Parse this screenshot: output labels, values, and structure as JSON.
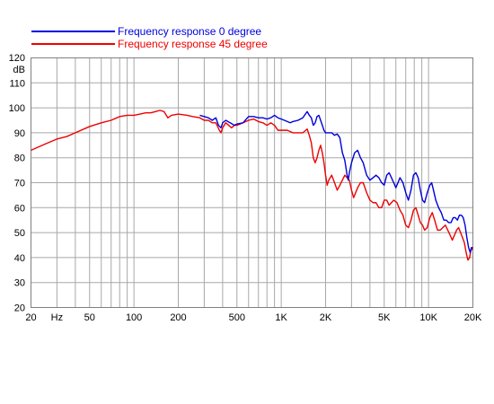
{
  "chart_data": {
    "type": "line",
    "title": "",
    "xlabel": "",
    "ylabel": "dB",
    "x_scale": "log",
    "xlim": [
      20,
      20000
    ],
    "ylim": [
      20,
      120
    ],
    "grid": true,
    "legend_position": "top",
    "x_ticks": [
      {
        "value": 20,
        "label": "20"
      },
      {
        "value": 30,
        "label": "Hz"
      },
      {
        "value": 50,
        "label": "50"
      },
      {
        "value": 100,
        "label": "100"
      },
      {
        "value": 200,
        "label": "200"
      },
      {
        "value": 500,
        "label": "500"
      },
      {
        "value": 1000,
        "label": "1K"
      },
      {
        "value": 2000,
        "label": "2K"
      },
      {
        "value": 5000,
        "label": "5K"
      },
      {
        "value": 10000,
        "label": "10K"
      },
      {
        "value": 20000,
        "label": "20K"
      }
    ],
    "y_ticks": [
      {
        "value": 30,
        "label": "30"
      },
      {
        "value": 40,
        "label": "40"
      },
      {
        "value": 50,
        "label": "50"
      },
      {
        "value": 60,
        "label": "60"
      },
      {
        "value": 70,
        "label": "70"
      },
      {
        "value": 80,
        "label": "80"
      },
      {
        "value": 90,
        "label": "90"
      },
      {
        "value": 100,
        "label": "100"
      },
      {
        "value": 110,
        "label": "110"
      }
    ],
    "y_top_labels": [
      "120",
      "dB"
    ],
    "series": [
      {
        "name": "Frequency response 0 degree",
        "color": "#0000dd",
        "points": [
          [
            280,
            97
          ],
          [
            300,
            96.5
          ],
          [
            320,
            96
          ],
          [
            340,
            95
          ],
          [
            360,
            96
          ],
          [
            375,
            93
          ],
          [
            390,
            92
          ],
          [
            400,
            94
          ],
          [
            420,
            95
          ],
          [
            450,
            94
          ],
          [
            480,
            93
          ],
          [
            500,
            93.5
          ],
          [
            550,
            94
          ],
          [
            600,
            96.5
          ],
          [
            650,
            96.5
          ],
          [
            700,
            96
          ],
          [
            750,
            96
          ],
          [
            800,
            95.5
          ],
          [
            850,
            96
          ],
          [
            900,
            97
          ],
          [
            950,
            96
          ],
          [
            1000,
            95.5
          ],
          [
            1050,
            95
          ],
          [
            1100,
            94.5
          ],
          [
            1150,
            94
          ],
          [
            1200,
            94.5
          ],
          [
            1300,
            95
          ],
          [
            1400,
            96
          ],
          [
            1500,
            98.5
          ],
          [
            1550,
            97
          ],
          [
            1600,
            96
          ],
          [
            1650,
            93
          ],
          [
            1700,
            94
          ],
          [
            1750,
            96.5
          ],
          [
            1800,
            97
          ],
          [
            1850,
            95
          ],
          [
            1900,
            93
          ],
          [
            1950,
            91
          ],
          [
            2000,
            90
          ],
          [
            2100,
            90
          ],
          [
            2200,
            90
          ],
          [
            2300,
            89
          ],
          [
            2400,
            89.5
          ],
          [
            2500,
            88
          ],
          [
            2600,
            82
          ],
          [
            2700,
            79
          ],
          [
            2800,
            73
          ],
          [
            2850,
            71
          ],
          [
            2900,
            74
          ],
          [
            3000,
            78
          ],
          [
            3150,
            82
          ],
          [
            3300,
            83
          ],
          [
            3450,
            80
          ],
          [
            3600,
            78
          ],
          [
            3800,
            73
          ],
          [
            4000,
            71
          ],
          [
            4200,
            72
          ],
          [
            4400,
            73
          ],
          [
            4600,
            72
          ],
          [
            4800,
            70
          ],
          [
            5000,
            69
          ],
          [
            5200,
            73
          ],
          [
            5400,
            74
          ],
          [
            5600,
            72
          ],
          [
            5800,
            70
          ],
          [
            6000,
            68
          ],
          [
            6200,
            70
          ],
          [
            6400,
            72
          ],
          [
            6700,
            70
          ],
          [
            7000,
            66
          ],
          [
            7300,
            63
          ],
          [
            7600,
            67
          ],
          [
            7900,
            73
          ],
          [
            8200,
            74
          ],
          [
            8500,
            72
          ],
          [
            8800,
            67
          ],
          [
            9100,
            63
          ],
          [
            9400,
            62
          ],
          [
            9800,
            66
          ],
          [
            10200,
            69
          ],
          [
            10500,
            70
          ],
          [
            10800,
            67
          ],
          [
            11200,
            63
          ],
          [
            11700,
            60
          ],
          [
            12200,
            58
          ],
          [
            12700,
            55
          ],
          [
            13200,
            55
          ],
          [
            13700,
            54
          ],
          [
            14200,
            54
          ],
          [
            14700,
            56
          ],
          [
            15200,
            56
          ],
          [
            15700,
            55
          ],
          [
            16200,
            57
          ],
          [
            16700,
            57
          ],
          [
            17200,
            56
          ],
          [
            17700,
            53
          ],
          [
            18200,
            48
          ],
          [
            18700,
            44
          ],
          [
            19200,
            42
          ],
          [
            19600,
            44
          ],
          [
            20000,
            44
          ]
        ]
      },
      {
        "name": "Frequency response 45 degree",
        "color": "#ee0000",
        "points": [
          [
            20,
            83
          ],
          [
            25,
            85.5
          ],
          [
            30,
            87.5
          ],
          [
            35,
            88.5
          ],
          [
            40,
            90
          ],
          [
            50,
            92.5
          ],
          [
            60,
            94
          ],
          [
            70,
            95
          ],
          [
            80,
            96.5
          ],
          [
            90,
            97
          ],
          [
            100,
            97
          ],
          [
            110,
            97.5
          ],
          [
            120,
            98
          ],
          [
            130,
            98
          ],
          [
            140,
            98.5
          ],
          [
            150,
            99
          ],
          [
            160,
            98.5
          ],
          [
            170,
            96
          ],
          [
            180,
            97
          ],
          [
            200,
            97.5
          ],
          [
            230,
            97
          ],
          [
            250,
            96.5
          ],
          [
            280,
            96
          ],
          [
            300,
            95
          ],
          [
            320,
            95
          ],
          [
            340,
            94
          ],
          [
            360,
            94
          ],
          [
            380,
            91
          ],
          [
            390,
            90
          ],
          [
            400,
            92
          ],
          [
            420,
            94
          ],
          [
            440,
            93
          ],
          [
            460,
            92
          ],
          [
            480,
            93
          ],
          [
            500,
            93
          ],
          [
            550,
            94
          ],
          [
            600,
            95
          ],
          [
            650,
            95.5
          ],
          [
            700,
            94.5
          ],
          [
            750,
            94
          ],
          [
            800,
            93
          ],
          [
            850,
            94
          ],
          [
            900,
            93
          ],
          [
            950,
            91
          ],
          [
            1000,
            91
          ],
          [
            1100,
            91
          ],
          [
            1200,
            90
          ],
          [
            1300,
            90
          ],
          [
            1400,
            90
          ],
          [
            1500,
            91.5
          ],
          [
            1550,
            89
          ],
          [
            1600,
            86
          ],
          [
            1650,
            80
          ],
          [
            1700,
            78
          ],
          [
            1750,
            80
          ],
          [
            1800,
            83
          ],
          [
            1850,
            85
          ],
          [
            1900,
            82
          ],
          [
            1950,
            78
          ],
          [
            2000,
            73
          ],
          [
            2050,
            69
          ],
          [
            2100,
            71
          ],
          [
            2200,
            73
          ],
          [
            2300,
            70
          ],
          [
            2400,
            67
          ],
          [
            2500,
            69
          ],
          [
            2600,
            71
          ],
          [
            2700,
            73
          ],
          [
            2800,
            72
          ],
          [
            2900,
            71
          ],
          [
            3000,
            67
          ],
          [
            3100,
            64
          ],
          [
            3200,
            66
          ],
          [
            3300,
            68
          ],
          [
            3450,
            70
          ],
          [
            3600,
            70
          ],
          [
            3800,
            66
          ],
          [
            4000,
            63
          ],
          [
            4200,
            62
          ],
          [
            4400,
            62
          ],
          [
            4600,
            60
          ],
          [
            4800,
            60
          ],
          [
            5000,
            63
          ],
          [
            5200,
            63
          ],
          [
            5400,
            61
          ],
          [
            5600,
            62
          ],
          [
            5800,
            63
          ],
          [
            6100,
            62
          ],
          [
            6400,
            59
          ],
          [
            6700,
            57
          ],
          [
            7000,
            53
          ],
          [
            7300,
            52
          ],
          [
            7600,
            55
          ],
          [
            7900,
            59
          ],
          [
            8200,
            60
          ],
          [
            8500,
            57
          ],
          [
            8800,
            54
          ],
          [
            9100,
            53
          ],
          [
            9400,
            51
          ],
          [
            9800,
            52
          ],
          [
            10200,
            56
          ],
          [
            10600,
            58
          ],
          [
            11000,
            55
          ],
          [
            11500,
            51
          ],
          [
            12000,
            51
          ],
          [
            12500,
            52
          ],
          [
            13000,
            53
          ],
          [
            13500,
            51
          ],
          [
            14000,
            49
          ],
          [
            14500,
            47
          ],
          [
            15000,
            49
          ],
          [
            15500,
            51
          ],
          [
            16000,
            52
          ],
          [
            16500,
            50
          ],
          [
            17000,
            48
          ],
          [
            17500,
            46
          ],
          [
            18000,
            42
          ],
          [
            18500,
            39
          ],
          [
            19000,
            40
          ],
          [
            19500,
            44
          ],
          [
            20000,
            43
          ]
        ]
      }
    ]
  }
}
